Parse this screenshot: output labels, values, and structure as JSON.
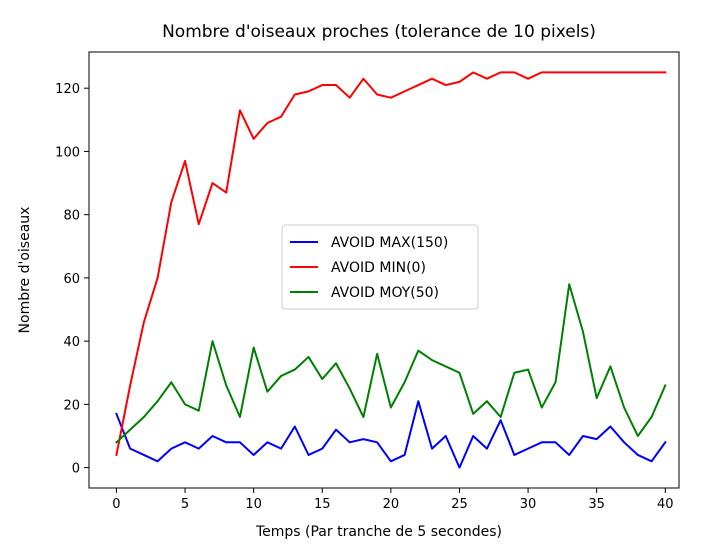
{
  "chart_data": {
    "type": "line",
    "title": "Nombre d'oiseaux proches (tolerance de 10 pixels)",
    "xlabel": "Temps (Par tranche de 5 secondes)",
    "ylabel": "Nombre d'oiseaux",
    "xlim": [
      -2,
      41
    ],
    "ylim": [
      -6.45,
      131.45
    ],
    "xticks": [
      0,
      5,
      10,
      15,
      20,
      25,
      30,
      35,
      40
    ],
    "yticks": [
      0,
      20,
      40,
      60,
      80,
      100,
      120
    ],
    "grid": false,
    "legend_position": "center",
    "x": [
      0,
      1,
      2,
      3,
      4,
      5,
      6,
      7,
      8,
      9,
      10,
      11,
      12,
      13,
      14,
      15,
      16,
      17,
      18,
      19,
      20,
      21,
      22,
      23,
      24,
      25,
      26,
      27,
      28,
      29,
      30,
      31,
      32,
      33,
      34,
      35,
      36,
      37,
      38,
      39,
      40
    ],
    "series": [
      {
        "name": "AVOID MAX(150)",
        "color": "#0000ff",
        "values": [
          17,
          6,
          4,
          2,
          6,
          8,
          6,
          10,
          8,
          8,
          4,
          8,
          6,
          13,
          4,
          6,
          12,
          8,
          9,
          8,
          2,
          4,
          21,
          6,
          10,
          0,
          10,
          6,
          15,
          4,
          6,
          8,
          8,
          4,
          10,
          9,
          13,
          8,
          4,
          2,
          8
        ]
      },
      {
        "name": "AVOID MIN(0)",
        "color": "#ff0000",
        "values": [
          4,
          26,
          46,
          60,
          84,
          97,
          77,
          90,
          87,
          113,
          104,
          109,
          111,
          118,
          119,
          121,
          121,
          117,
          123,
          118,
          117,
          119,
          121,
          123,
          121,
          122,
          125,
          123,
          125,
          125,
          123,
          125,
          125,
          125,
          125,
          125,
          125,
          125,
          125,
          125,
          125
        ]
      },
      {
        "name": "AVOID MOY(50)",
        "color": "#008000",
        "values": [
          8,
          12,
          16,
          21,
          27,
          20,
          18,
          40,
          26,
          16,
          38,
          24,
          29,
          31,
          35,
          28,
          33,
          25,
          16,
          36,
          19,
          27,
          37,
          34,
          32,
          30,
          17,
          21,
          16,
          30,
          31,
          19,
          27,
          58,
          43,
          22,
          32,
          19,
          10,
          16,
          26
        ]
      }
    ]
  }
}
